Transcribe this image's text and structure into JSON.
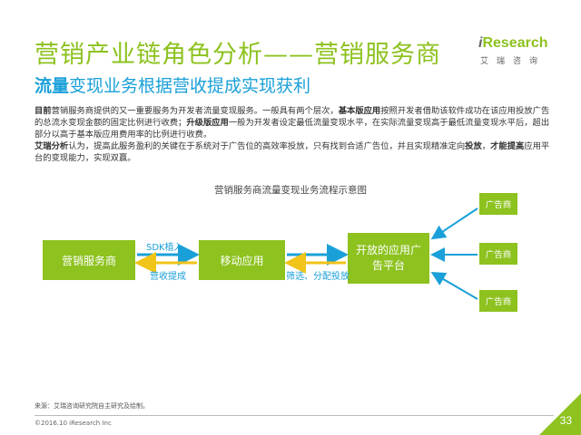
{
  "slide": {
    "title": "营销产业链角色分析——营销服务商",
    "subtitle_highlight": "流量",
    "subtitle_rest": "变现业务根据营收提成实现获利",
    "page_number": "33"
  },
  "logo": {
    "brand_i": "i",
    "brand_name": "Research",
    "brand_cn": "艾瑞咨询"
  },
  "body": {
    "p1_lead": "目前",
    "p1_a": "营销服务商提供的又一重要服务为开发者流量变现服务。一般具有两个层次，",
    "p1_basic": "基本版应用",
    "p1_b": "按照开发者借助该软件成功在该应用投放广告的总流水变现金额的固定比例进行收费；",
    "p1_upgrade": "升级版应用",
    "p1_c": "一般为开发者设定最低流量变现水平，在实际流量变现高于最低流量变现水平后，超出部分以高于基本版应用费用率的比例进行收费。",
    "p2_lead": "艾瑞分析",
    "p2_a": "认为，提高此服务盈利的关键在于系统对于广告位的高效率投放，只有找到合适广告位，并且实现精准定向",
    "p2_b": "投放",
    "p2_c": "，",
    "p2_d": "才能提高",
    "p2_e": "应用平台的变现能力，实现双赢。"
  },
  "diagram": {
    "title": "营销服务商流量变现业务流程示意图",
    "nodes": {
      "marketing_provider": "营销服务商",
      "mobile_app": "移动应用",
      "open_platform": "开放的应用广告平台",
      "advertisers": [
        "广告商",
        "广告商",
        "广告商"
      ]
    },
    "edges": {
      "sdk": "SDK植入",
      "revenue": "营收提成",
      "filter": "筛选、分配投放"
    },
    "colors": {
      "node_green": "#8dc21f",
      "arrow_blue": "#1aa0d8",
      "arrow_yellow": "#f0c419"
    }
  },
  "footer": {
    "source": "来源：艾瑞咨询研究院自主研究及绘制。",
    "copyright": "©2016.10 iResearch Inc"
  }
}
